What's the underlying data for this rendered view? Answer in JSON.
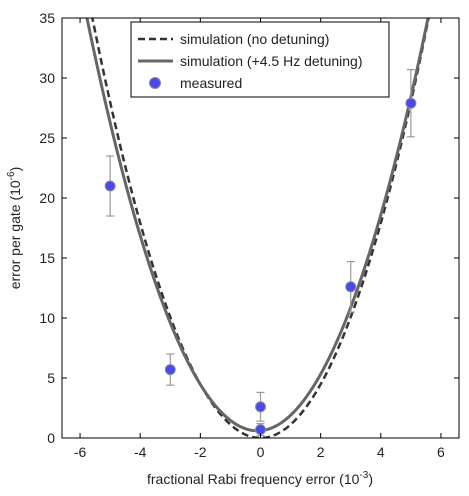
{
  "chart_data": {
    "type": "scatter",
    "title": "",
    "xlabel": "fractional Rabi frequency error (10",
    "xlabel_exp": "-3",
    "xlabel_close": ")",
    "ylabel": "error per gate (10",
    "ylabel_exp": "-6",
    "ylabel_close": ")",
    "xlim": [
      -6.6,
      6.6
    ],
    "ylim": [
      0,
      35
    ],
    "xticks": [
      -6,
      -4,
      -2,
      0,
      2,
      4,
      6
    ],
    "yticks": [
      0,
      5,
      10,
      15,
      20,
      25,
      30,
      35
    ],
    "grid": false,
    "legend_position": "top-center",
    "series": [
      {
        "name": "simulation (no detuning)",
        "kind": "line",
        "style": "dashed",
        "color": "#333333",
        "model": {
          "a": 1.12,
          "x0": 0.0,
          "c": 0.0
        }
      },
      {
        "name": "simulation (+4.5 Hz detuning)",
        "kind": "line",
        "style": "solid",
        "color": "#666666",
        "model": {
          "a": 1.07,
          "x0": -0.1,
          "c": 0.6
        }
      },
      {
        "name": "measured",
        "kind": "scatter",
        "color": "#4a4ae8",
        "points": [
          {
            "x": -5,
            "y": 21.0,
            "err": 2.5
          },
          {
            "x": -3,
            "y": 5.7,
            "err": 1.3
          },
          {
            "x": 0,
            "y": 2.6,
            "err": 1.2
          },
          {
            "x": 0,
            "y": 0.7,
            "err": 0.5
          },
          {
            "x": 3,
            "y": 12.6,
            "err": 2.1
          },
          {
            "x": 5,
            "y": 27.9,
            "err": 2.8
          }
        ]
      }
    ]
  }
}
